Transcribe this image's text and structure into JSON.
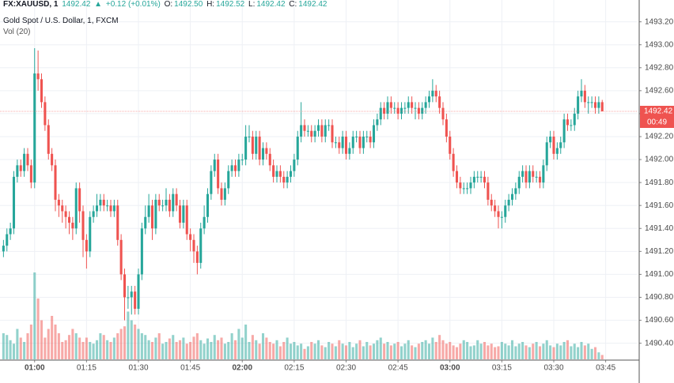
{
  "header": {
    "symbol": "FX:XAUUSD, 1",
    "price": "1492.42",
    "arrow": "▲",
    "change": "+0.12 (+0.01%)",
    "o_label": "O:",
    "o": "1492.50",
    "h_label": "H:",
    "h": "1492.52",
    "l_label": "L:",
    "l": "1492.42",
    "c_label": "C:",
    "c": "1492.42",
    "name": "Gold Spot / U.S. Dollar, 1, FXCM",
    "volume_label": "Vol (20)"
  },
  "chart_data": {
    "type": "candlestick",
    "up_color": "#26a69a",
    "down_color": "#ef5350",
    "grid": true,
    "last_price": 1492.42,
    "last_price_label": "1492.42",
    "countdown": "00:49",
    "xlim": [
      "00:50",
      "03:54"
    ],
    "xticks": [
      "01:00",
      "01:15",
      "01:30",
      "01:45",
      "02:00",
      "02:15",
      "02:30",
      "02:45",
      "03:00",
      "03:15",
      "03:30",
      "03:45"
    ],
    "ylim": [
      1490.26,
      1493.39
    ],
    "yticks": [
      {
        "value": 1490.4,
        "label": "1490.40"
      },
      {
        "value": 1490.6,
        "label": "1490.60"
      },
      {
        "value": 1490.8,
        "label": "1490.80"
      },
      {
        "value": 1491.0,
        "label": "1491.00"
      },
      {
        "value": 1491.2,
        "label": "1491.20"
      },
      {
        "value": 1491.4,
        "label": "1491.40"
      },
      {
        "value": 1491.6,
        "label": "1491.60"
      },
      {
        "value": 1491.8,
        "label": "1491.80"
      },
      {
        "value": 1492.0,
        "label": "1492.00"
      },
      {
        "value": 1492.2,
        "label": "1492.20"
      },
      {
        "value": 1492.4,
        "label": "1492.40"
      },
      {
        "value": 1492.6,
        "label": "1492.60"
      },
      {
        "value": 1492.8,
        "label": "1492.80"
      },
      {
        "value": 1493.0,
        "label": "1493.00"
      },
      {
        "value": 1493.2,
        "label": "1493.20"
      }
    ],
    "x": [
      "00:51",
      "00:52",
      "00:53",
      "00:54",
      "00:55",
      "00:56",
      "00:57",
      "00:58",
      "00:59",
      "01:00",
      "01:01",
      "01:02",
      "01:03",
      "01:04",
      "01:05",
      "01:06",
      "01:07",
      "01:08",
      "01:09",
      "01:10",
      "01:11",
      "01:12",
      "01:13",
      "01:14",
      "01:15",
      "01:16",
      "01:17",
      "01:18",
      "01:19",
      "01:20",
      "01:21",
      "01:22",
      "01:23",
      "01:24",
      "01:25",
      "01:26",
      "01:27",
      "01:28",
      "01:29",
      "01:30",
      "01:31",
      "01:32",
      "01:33",
      "01:34",
      "01:35",
      "01:36",
      "01:37",
      "01:38",
      "01:39",
      "01:40",
      "01:41",
      "01:42",
      "01:43",
      "01:44",
      "01:45",
      "01:46",
      "01:47",
      "01:48",
      "01:49",
      "01:50",
      "01:51",
      "01:52",
      "01:53",
      "01:54",
      "01:55",
      "01:56",
      "01:57",
      "01:58",
      "01:59",
      "02:00",
      "02:01",
      "02:02",
      "02:03",
      "02:04",
      "02:05",
      "02:06",
      "02:07",
      "02:08",
      "02:09",
      "02:10",
      "02:11",
      "02:12",
      "02:13",
      "02:14",
      "02:15",
      "02:16",
      "02:17",
      "02:18",
      "02:19",
      "02:20",
      "02:21",
      "02:22",
      "02:23",
      "02:24",
      "02:25",
      "02:26",
      "02:27",
      "02:28",
      "02:29",
      "02:30",
      "02:31",
      "02:32",
      "02:33",
      "02:34",
      "02:35",
      "02:36",
      "02:37",
      "02:38",
      "02:39",
      "02:40",
      "02:41",
      "02:42",
      "02:43",
      "02:44",
      "02:45",
      "02:46",
      "02:47",
      "02:48",
      "02:49",
      "02:50",
      "02:51",
      "02:52",
      "02:53",
      "02:54",
      "02:55",
      "02:56",
      "02:57",
      "02:58",
      "02:59",
      "03:00",
      "03:01",
      "03:02",
      "03:03",
      "03:04",
      "03:05",
      "03:06",
      "03:07",
      "03:08",
      "03:09",
      "03:10",
      "03:11",
      "03:12",
      "03:13",
      "03:14",
      "03:15",
      "03:16",
      "03:17",
      "03:18",
      "03:19",
      "03:20",
      "03:21",
      "03:22",
      "03:23",
      "03:24",
      "03:25",
      "03:26",
      "03:27",
      "03:28",
      "03:29",
      "03:30",
      "03:31",
      "03:32",
      "03:33",
      "03:34",
      "03:35",
      "03:36",
      "03:37",
      "03:38",
      "03:39",
      "03:40",
      "03:41",
      "03:42",
      "03:43",
      "03:44"
    ],
    "open": [
      1491.2,
      1491.25,
      1491.35,
      1491.4,
      1491.85,
      1491.95,
      1491.9,
      1492.05,
      1491.95,
      1491.8,
      1492.75,
      1492.7,
      1492.5,
      1492.3,
      1492.05,
      1491.95,
      1491.65,
      1491.6,
      1491.55,
      1491.5,
      1491.45,
      1491.4,
      1491.75,
      1491.55,
      1491.3,
      1491.2,
      1491.5,
      1491.55,
      1491.6,
      1491.65,
      1491.6,
      1491.6,
      1491.55,
      1491.6,
      1491.3,
      1491.0,
      1490.8,
      1490.8,
      1490.85,
      1490.7,
      1491.0,
      1491.4,
      1491.5,
      1491.6,
      1491.4,
      1491.65,
      1491.6,
      1491.6,
      1491.65,
      1491.55,
      1491.7,
      1491.6,
      1491.45,
      1491.6,
      1491.35,
      1491.3,
      1491.2,
      1491.1,
      1491.4,
      1491.5,
      1491.7,
      1491.9,
      1492.0,
      1491.75,
      1491.65,
      1491.75,
      1491.9,
      1491.95,
      1491.9,
      1492.0,
      1492.0,
      1492.2,
      1492.2,
      1492.05,
      1492.2,
      1492.0,
      1492.1,
      1492.05,
      1491.95,
      1491.85,
      1491.9,
      1491.85,
      1491.8,
      1491.85,
      1491.9,
      1492.0,
      1492.2,
      1492.3,
      1492.25,
      1492.25,
      1492.2,
      1492.25,
      1492.3,
      1492.2,
      1492.3,
      1492.3,
      1492.15,
      1492.15,
      1492.1,
      1492.2,
      1492.05,
      1492.1,
      1492.2,
      1492.2,
      1492.1,
      1492.2,
      1492.2,
      1492.15,
      1492.3,
      1492.35,
      1492.45,
      1492.4,
      1492.5,
      1492.45,
      1492.45,
      1492.4,
      1492.45,
      1492.45,
      1492.5,
      1492.45,
      1492.45,
      1492.4,
      1492.45,
      1492.5,
      1492.55,
      1492.6,
      1492.55,
      1492.45,
      1492.35,
      1492.2,
      1492.05,
      1491.9,
      1491.8,
      1491.75,
      1491.75,
      1491.75,
      1491.8,
      1491.85,
      1491.85,
      1491.85,
      1491.8,
      1491.65,
      1491.6,
      1491.55,
      1491.5,
      1491.5,
      1491.6,
      1491.65,
      1491.7,
      1491.75,
      1491.85,
      1491.9,
      1491.8,
      1491.9,
      1491.85,
      1491.85,
      1491.8,
      1491.95,
      1492.15,
      1492.2,
      1492.05,
      1492.1,
      1492.15,
      1492.35,
      1492.3,
      1492.3,
      1492.4,
      1492.55,
      1492.6,
      1492.5,
      1492.5,
      1492.5,
      1492.45,
      1492.5
    ],
    "high": [
      1491.3,
      1491.4,
      1491.45,
      1491.9,
      1492.0,
      1492.0,
      1492.1,
      1492.1,
      1492.0,
      1492.97,
      1492.95,
      1492.75,
      1492.55,
      1492.35,
      1492.1,
      1492.0,
      1491.7,
      1491.65,
      1491.6,
      1491.55,
      1491.5,
      1491.8,
      1491.8,
      1491.6,
      1491.35,
      1491.55,
      1491.6,
      1491.7,
      1491.7,
      1491.7,
      1491.65,
      1491.65,
      1491.65,
      1491.65,
      1491.35,
      1491.05,
      1490.9,
      1490.9,
      1490.9,
      1491.05,
      1491.45,
      1491.6,
      1491.7,
      1491.65,
      1491.7,
      1491.7,
      1491.65,
      1491.75,
      1491.7,
      1491.75,
      1491.75,
      1491.65,
      1491.65,
      1491.65,
      1491.4,
      1491.35,
      1491.25,
      1491.45,
      1491.6,
      1491.75,
      1491.95,
      1492.05,
      1492.05,
      1491.8,
      1491.8,
      1491.95,
      1492.0,
      1492.0,
      1492.05,
      1492.05,
      1492.3,
      1492.3,
      1492.25,
      1492.25,
      1492.25,
      1492.15,
      1492.15,
      1492.1,
      1492.0,
      1491.95,
      1491.95,
      1491.9,
      1491.9,
      1491.95,
      1492.05,
      1492.25,
      1492.5,
      1492.35,
      1492.3,
      1492.3,
      1492.3,
      1492.35,
      1492.35,
      1492.35,
      1492.35,
      1492.35,
      1492.2,
      1492.2,
      1492.25,
      1492.25,
      1492.15,
      1492.25,
      1492.25,
      1492.25,
      1492.25,
      1492.25,
      1492.25,
      1492.35,
      1492.4,
      1492.5,
      1492.5,
      1492.55,
      1492.55,
      1492.5,
      1492.5,
      1492.5,
      1492.5,
      1492.55,
      1492.55,
      1492.5,
      1492.5,
      1492.5,
      1492.55,
      1492.6,
      1492.7,
      1492.65,
      1492.6,
      1492.5,
      1492.4,
      1492.25,
      1492.1,
      1491.95,
      1491.85,
      1491.8,
      1491.8,
      1491.85,
      1491.9,
      1491.9,
      1491.9,
      1491.9,
      1491.85,
      1491.7,
      1491.65,
      1491.6,
      1491.55,
      1491.65,
      1491.7,
      1491.75,
      1491.8,
      1491.9,
      1491.95,
      1491.95,
      1491.95,
      1491.95,
      1491.9,
      1491.9,
      1492.0,
      1492.2,
      1492.25,
      1492.25,
      1492.15,
      1492.2,
      1492.4,
      1492.4,
      1492.35,
      1492.45,
      1492.6,
      1492.7,
      1492.65,
      1492.55,
      1492.55,
      1492.55,
      1492.55,
      1492.52
    ],
    "low": [
      1491.15,
      1491.2,
      1491.3,
      1491.35,
      1491.8,
      1491.85,
      1491.85,
      1491.9,
      1491.75,
      1491.75,
      1492.6,
      1492.45,
      1492.25,
      1492.0,
      1491.9,
      1491.55,
      1491.5,
      1491.45,
      1491.4,
      1491.35,
      1491.3,
      1491.35,
      1491.45,
      1491.15,
      1491.05,
      1491.15,
      1491.45,
      1491.5,
      1491.55,
      1491.55,
      1491.55,
      1491.5,
      1491.5,
      1491.25,
      1490.95,
      1490.6,
      1490.7,
      1490.65,
      1490.65,
      1490.65,
      1490.95,
      1491.35,
      1491.45,
      1491.3,
      1491.35,
      1491.55,
      1491.55,
      1491.55,
      1491.5,
      1491.5,
      1491.55,
      1491.4,
      1491.4,
      1491.3,
      1491.2,
      1491.1,
      1491.0,
      1491.05,
      1491.35,
      1491.45,
      1491.65,
      1491.85,
      1491.7,
      1491.6,
      1491.6,
      1491.7,
      1491.85,
      1491.85,
      1491.85,
      1491.95,
      1491.95,
      1492.15,
      1492.0,
      1492.0,
      1491.95,
      1491.95,
      1492.0,
      1491.9,
      1491.8,
      1491.8,
      1491.8,
      1491.75,
      1491.75,
      1491.8,
      1491.85,
      1491.95,
      1492.15,
      1492.2,
      1492.2,
      1492.15,
      1492.15,
      1492.2,
      1492.15,
      1492.15,
      1492.25,
      1492.1,
      1492.1,
      1492.05,
      1492.05,
      1492.0,
      1492.0,
      1492.05,
      1492.15,
      1492.05,
      1492.05,
      1492.15,
      1492.1,
      1492.1,
      1492.25,
      1492.3,
      1492.35,
      1492.35,
      1492.4,
      1492.4,
      1492.35,
      1492.35,
      1492.4,
      1492.4,
      1492.4,
      1492.35,
      1492.35,
      1492.35,
      1492.4,
      1492.45,
      1492.5,
      1492.5,
      1492.4,
      1492.3,
      1492.15,
      1492.0,
      1491.85,
      1491.75,
      1491.7,
      1491.7,
      1491.7,
      1491.7,
      1491.75,
      1491.8,
      1491.8,
      1491.75,
      1491.6,
      1491.55,
      1491.5,
      1491.4,
      1491.4,
      1491.45,
      1491.55,
      1491.6,
      1491.65,
      1491.7,
      1491.8,
      1491.75,
      1491.75,
      1491.8,
      1491.8,
      1491.75,
      1491.75,
      1491.9,
      1492.1,
      1492.0,
      1492.0,
      1492.05,
      1492.1,
      1492.25,
      1492.25,
      1492.25,
      1492.35,
      1492.5,
      1492.45,
      1492.4,
      1492.45,
      1492.4,
      1492.4,
      1492.42
    ],
    "close": [
      1491.25,
      1491.35,
      1491.4,
      1491.85,
      1491.95,
      1491.9,
      1492.05,
      1491.95,
      1491.8,
      1492.75,
      1492.7,
      1492.5,
      1492.3,
      1492.05,
      1491.95,
      1491.65,
      1491.6,
      1491.55,
      1491.5,
      1491.45,
      1491.4,
      1491.75,
      1491.55,
      1491.3,
      1491.2,
      1491.5,
      1491.55,
      1491.6,
      1491.65,
      1491.6,
      1491.6,
      1491.55,
      1491.6,
      1491.3,
      1491.0,
      1490.8,
      1490.8,
      1490.85,
      1490.7,
      1491.0,
      1491.4,
      1491.5,
      1491.6,
      1491.4,
      1491.65,
      1491.6,
      1491.6,
      1491.65,
      1491.55,
      1491.7,
      1491.6,
      1491.45,
      1491.6,
      1491.35,
      1491.3,
      1491.2,
      1491.1,
      1491.4,
      1491.5,
      1491.7,
      1491.9,
      1492.0,
      1491.75,
      1491.65,
      1491.75,
      1491.9,
      1491.95,
      1491.9,
      1492.0,
      1492.0,
      1492.2,
      1492.2,
      1492.05,
      1492.2,
      1492.0,
      1492.1,
      1492.05,
      1491.95,
      1491.85,
      1491.9,
      1491.85,
      1491.8,
      1491.85,
      1491.9,
      1492.0,
      1492.2,
      1492.3,
      1492.25,
      1492.25,
      1492.2,
      1492.25,
      1492.3,
      1492.2,
      1492.3,
      1492.3,
      1492.15,
      1492.15,
      1492.1,
      1492.2,
      1492.05,
      1492.1,
      1492.2,
      1492.2,
      1492.1,
      1492.2,
      1492.2,
      1492.15,
      1492.3,
      1492.35,
      1492.45,
      1492.4,
      1492.5,
      1492.45,
      1492.45,
      1492.4,
      1492.45,
      1492.45,
      1492.5,
      1492.45,
      1492.45,
      1492.4,
      1492.45,
      1492.5,
      1492.55,
      1492.6,
      1492.55,
      1492.45,
      1492.35,
      1492.2,
      1492.05,
      1491.9,
      1491.8,
      1491.75,
      1491.75,
      1491.75,
      1491.8,
      1491.85,
      1491.85,
      1491.85,
      1491.8,
      1491.65,
      1491.6,
      1491.55,
      1491.5,
      1491.5,
      1491.6,
      1491.65,
      1491.7,
      1491.75,
      1491.85,
      1491.9,
      1491.8,
      1491.9,
      1491.85,
      1491.85,
      1491.8,
      1491.95,
      1492.15,
      1492.2,
      1492.05,
      1492.1,
      1492.15,
      1492.35,
      1492.3,
      1492.3,
      1492.4,
      1492.55,
      1492.6,
      1492.5,
      1492.5,
      1492.5,
      1492.45,
      1492.5,
      1492.42
    ],
    "volume": [
      30,
      28,
      22,
      18,
      35,
      25,
      20,
      30,
      40,
      100,
      70,
      45,
      25,
      35,
      50,
      40,
      30,
      20,
      22,
      28,
      35,
      30,
      25,
      20,
      25,
      20,
      18,
      22,
      30,
      28,
      22,
      20,
      25,
      30,
      35,
      38,
      55,
      45,
      40,
      35,
      30,
      28,
      22,
      20,
      25,
      30,
      18,
      20,
      24,
      28,
      20,
      22,
      25,
      18,
      20,
      26,
      30,
      22,
      18,
      24,
      20,
      28,
      22,
      25,
      18,
      20,
      30,
      22,
      35,
      25,
      40,
      20,
      28,
      22,
      18,
      30,
      25,
      20,
      18,
      22,
      15,
      20,
      25,
      18,
      20,
      16,
      18,
      12,
      15,
      20,
      18,
      22,
      16,
      14,
      20,
      18,
      15,
      22,
      18,
      16,
      20,
      14,
      18,
      22,
      15,
      20,
      16,
      18,
      22,
      25,
      18,
      20,
      16,
      18,
      20,
      15,
      18,
      22,
      16,
      14,
      18,
      20,
      22,
      18,
      25,
      20,
      28,
      22,
      18,
      20,
      16,
      14,
      18,
      22,
      20,
      15,
      16,
      22,
      18,
      20,
      16,
      18,
      14,
      15,
      20,
      18,
      16,
      22,
      15,
      18,
      20,
      16,
      14,
      18,
      20,
      15,
      18,
      22,
      16,
      14,
      18,
      16,
      20,
      22,
      15,
      18,
      14,
      20,
      16,
      18,
      12,
      14,
      8,
      5
    ]
  }
}
